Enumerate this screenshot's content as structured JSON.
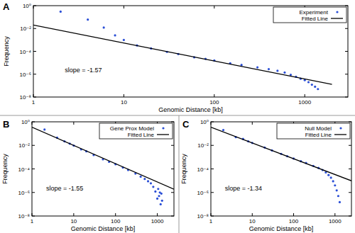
{
  "chart_data": [
    {
      "type": "scatter",
      "title": "A",
      "annotation": "slope = -1.57",
      "x_label": "Genomic Distance [kb]",
      "y_label": "Frequency",
      "log": true,
      "legend": "top-right",
      "xlim": [
        1,
        3000
      ],
      "ylim": [
        1e-08,
        1
      ],
      "xticks": [
        1,
        10,
        100,
        1000
      ],
      "yticks": [
        {
          "value": 1,
          "label": "10⁰"
        },
        {
          "value": 0.01,
          "label": "10⁻²"
        },
        {
          "value": 0.0001,
          "label": "10⁻⁴"
        },
        {
          "value": 1e-06,
          "label": "10⁻⁶"
        },
        {
          "value": 1e-08,
          "label": "10⁻⁸"
        }
      ],
      "series": [
        {
          "name": "Experiment",
          "type": "scatter",
          "marker": "dot",
          "color": "#2b4fd6",
          "x": [
            2,
            4,
            6,
            8,
            10,
            14,
            20,
            30,
            40,
            60,
            80,
            100,
            150,
            200,
            300,
            400,
            500,
            600,
            700,
            800,
            900,
            1000,
            1100,
            1200,
            1300,
            1400
          ],
          "values": [
            0.3,
            0.06,
            0.012,
            0.0025,
            0.001,
            0.00033,
            0.00018,
            9e-05,
            5.8e-05,
            3e-05,
            2.2e-05,
            1.6e-05,
            9e-06,
            6.5e-06,
            4e-06,
            2.8e-06,
            2e-06,
            1.4e-06,
            9e-07,
            6e-07,
            4e-07,
            3e-07,
            2e-07,
            1.2e-07,
            8e-08,
            5e-08
          ]
        },
        {
          "name": "Fitted Line",
          "type": "line",
          "line_style": "solid",
          "color": "#000000",
          "x": [
            1,
            2000
          ],
          "values": [
            0.02,
            1.3e-07
          ]
        }
      ]
    },
    {
      "type": "scatter",
      "title": "B",
      "annotation": "slope = -1.55",
      "x_label": "Genomic Distance [kb]",
      "y_label": "Frequency",
      "log": true,
      "legend": "top-right",
      "xlim": [
        1,
        2500
      ],
      "ylim": [
        1e-08,
        1
      ],
      "xticks": [
        1,
        10,
        100,
        1000
      ],
      "yticks": [
        {
          "value": 1,
          "label": "10⁰"
        },
        {
          "value": 0.01,
          "label": "10⁻²"
        },
        {
          "value": 0.0001,
          "label": "10⁻⁴"
        },
        {
          "value": 1e-06,
          "label": "10⁻⁶"
        },
        {
          "value": 1e-08,
          "label": "10⁻⁸"
        }
      ],
      "series": [
        {
          "name": "Gene Prox Model",
          "type": "scatter",
          "marker": "dot",
          "color": "#2b4fd6",
          "x": [
            2,
            4,
            6,
            8,
            10,
            15,
            20,
            30,
            50,
            70,
            100,
            150,
            200,
            300,
            400,
            500,
            600,
            700,
            800,
            900,
            1000,
            1050,
            1100,
            1150,
            1200,
            1250,
            1300
          ],
          "values": [
            0.22,
            0.045,
            0.022,
            0.014,
            0.0095,
            0.0045,
            0.0031,
            0.0015,
            0.00065,
            0.0004,
            0.00025,
            0.00013,
            8e-05,
            4e-05,
            2.2e-05,
            1.4e-05,
            9e-06,
            6e-06,
            3e-06,
            1.2e-06,
            3e-07,
            2e-06,
            5e-07,
            1e-06,
            1e-07,
            8e-07,
            2e-07
          ]
        },
        {
          "name": "Fitted Line",
          "type": "line",
          "line_style": "solid",
          "color": "#000000",
          "x": [
            1,
            2500
          ],
          "values": [
            0.35,
            1.9e-06
          ]
        }
      ]
    },
    {
      "type": "scatter",
      "title": "C",
      "annotation": "slope = -1.34",
      "x_label": "Genomic Distance [kb]",
      "y_label": "Frequency",
      "log": true,
      "legend": "top-right",
      "xlim": [
        1,
        2500
      ],
      "ylim": [
        1e-08,
        1
      ],
      "xticks": [
        1,
        10,
        100,
        1000
      ],
      "yticks": [
        {
          "value": 1,
          "label": "10⁰"
        },
        {
          "value": 0.01,
          "label": "10⁻²"
        },
        {
          "value": 0.0001,
          "label": "10⁻⁴"
        },
        {
          "value": 1e-06,
          "label": "10⁻⁶"
        },
        {
          "value": 1e-08,
          "label": "10⁻⁸"
        }
      ],
      "series": [
        {
          "name": "Null Model",
          "type": "scatter",
          "marker": "dot",
          "color": "#2b4fd6",
          "x": [
            2,
            4,
            6,
            8,
            10,
            20,
            30,
            50,
            70,
            100,
            150,
            200,
            300,
            400,
            500,
            600,
            700,
            800,
            900,
            1000,
            1100,
            1200,
            1300
          ],
          "values": [
            0.2,
            0.05,
            0.035,
            0.022,
            0.016,
            0.0065,
            0.0037,
            0.0019,
            0.0012,
            0.00075,
            0.00045,
            0.00032,
            0.00018,
            0.00012,
            8e-05,
            5e-05,
            3e-05,
            1.8e-05,
            9e-06,
            4e-06,
            1.5e-06,
            5e-07,
            1.5e-07
          ]
        },
        {
          "name": "Fitted Line",
          "type": "line",
          "line_style": "solid",
          "color": "#000000",
          "x": [
            1,
            2500
          ],
          "values": [
            0.35,
            9.8e-06
          ]
        }
      ]
    }
  ]
}
